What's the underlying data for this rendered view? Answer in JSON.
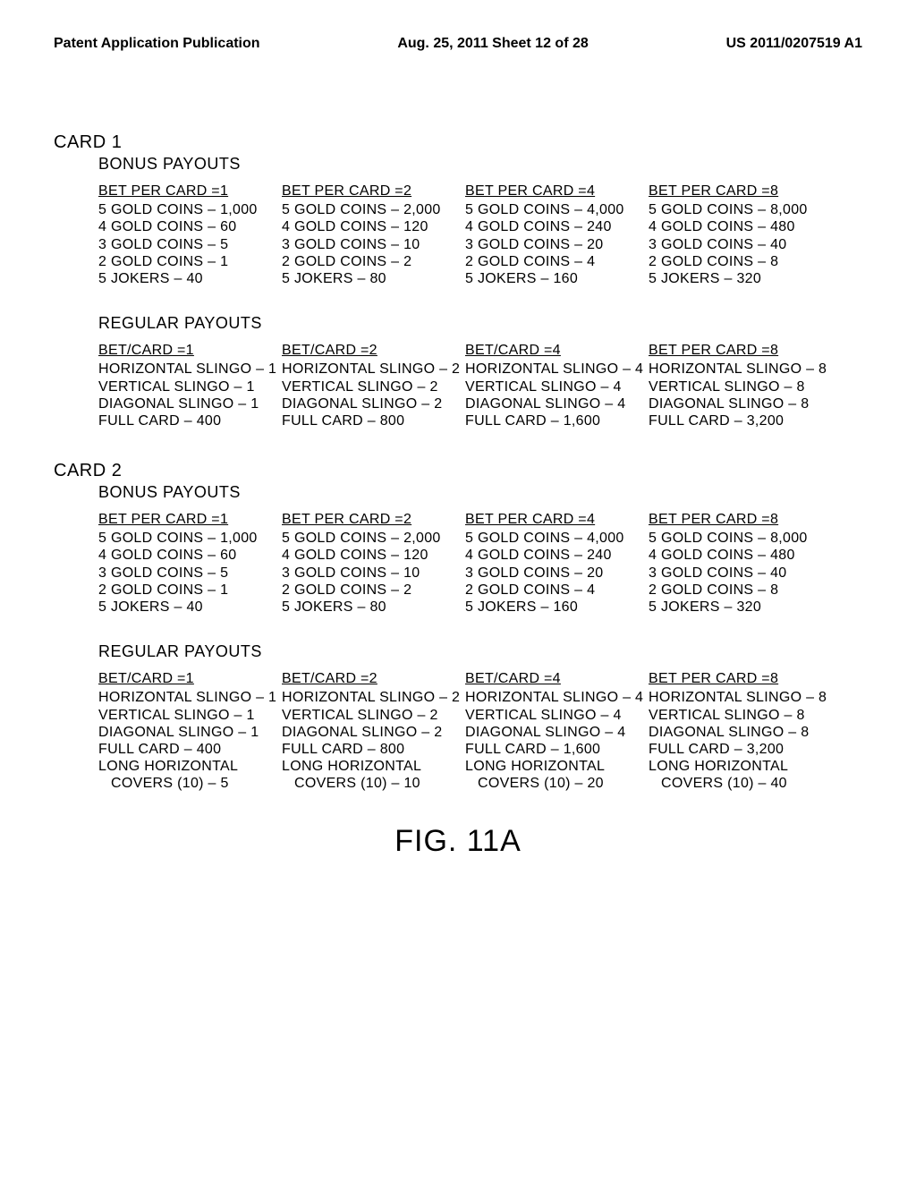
{
  "header": {
    "left": "Patent Application Publication",
    "center": "Aug. 25, 2011  Sheet 12 of 28",
    "right": "US 2011/0207519 A1"
  },
  "cards": [
    {
      "label": "CARD 1",
      "sections": [
        {
          "title": "BONUS PAYOUTS",
          "columns": [
            {
              "header": "BET PER CARD =1",
              "rows": [
                "5 GOLD COINS – 1,000",
                "4 GOLD COINS – 60",
                "3 GOLD COINS – 5",
                "2 GOLD COINS – 1",
                "5 JOKERS – 40"
              ]
            },
            {
              "header": "BET PER CARD =2",
              "rows": [
                "5 GOLD COINS – 2,000",
                "4 GOLD COINS – 120",
                "3 GOLD COINS – 10",
                "2 GOLD COINS – 2",
                "5 JOKERS – 80"
              ]
            },
            {
              "header": "BET PER CARD =4",
              "rows": [
                "5 GOLD COINS – 4,000",
                "4 GOLD COINS – 240",
                "3 GOLD COINS – 20",
                "2 GOLD COINS – 4",
                "5 JOKERS – 160"
              ]
            },
            {
              "header": "BET PER CARD =8",
              "rows": [
                "5 GOLD COINS – 8,000",
                "4 GOLD COINS – 480",
                "3 GOLD COINS – 40",
                "2 GOLD COINS – 8",
                "5 JOKERS – 320"
              ]
            }
          ]
        },
        {
          "title": "REGULAR PAYOUTS",
          "columns": [
            {
              "header": "BET/CARD =1",
              "rows": [
                "HORIZONTAL SLINGO – 1",
                "VERTICAL SLINGO – 1",
                "DIAGONAL SLINGO – 1",
                "FULL CARD – 400"
              ]
            },
            {
              "header": "BET/CARD =2",
              "rows": [
                "HORIZONTAL SLINGO – 2",
                "VERTICAL SLINGO – 2",
                "DIAGONAL SLINGO – 2",
                "FULL CARD – 800"
              ]
            },
            {
              "header": "BET/CARD =4",
              "rows": [
                "HORIZONTAL SLINGO – 4",
                "VERTICAL SLINGO – 4",
                "DIAGONAL SLINGO – 4",
                "FULL CARD – 1,600"
              ]
            },
            {
              "header": "BET PER CARD =8",
              "rows": [
                "HORIZONTAL SLINGO – 8",
                "VERTICAL SLINGO – 8",
                "DIAGONAL SLINGO – 8",
                "FULL CARD – 3,200"
              ]
            }
          ]
        }
      ]
    },
    {
      "label": "CARD 2",
      "sections": [
        {
          "title": "BONUS PAYOUTS",
          "columns": [
            {
              "header": "BET PER CARD =1",
              "rows": [
                "5 GOLD COINS – 1,000",
                "4 GOLD COINS – 60",
                "3 GOLD COINS – 5",
                "2 GOLD COINS – 1",
                "5 JOKERS – 40"
              ]
            },
            {
              "header": "BET PER CARD =2",
              "rows": [
                "5 GOLD COINS – 2,000",
                "4 GOLD COINS – 120",
                "3 GOLD COINS – 10",
                "2 GOLD COINS – 2",
                "5 JOKERS – 80"
              ]
            },
            {
              "header": "BET PER CARD =4",
              "rows": [
                "5 GOLD COINS – 4,000",
                "4 GOLD COINS – 240",
                "3 GOLD COINS – 20",
                "2 GOLD COINS – 4",
                "5 JOKERS – 160"
              ]
            },
            {
              "header": "BET PER CARD =8",
              "rows": [
                "5 GOLD COINS – 8,000",
                "4 GOLD COINS – 480",
                "3 GOLD COINS – 40",
                "2 GOLD COINS – 8",
                "5 JOKERS – 320"
              ]
            }
          ]
        },
        {
          "title": "REGULAR PAYOUTS",
          "columns": [
            {
              "header": "BET/CARD =1",
              "rows": [
                "HORIZONTAL SLINGO – 1",
                "VERTICAL SLINGO – 1",
                "DIAGONAL SLINGO – 1",
                "FULL CARD – 400",
                "LONG HORIZONTAL",
                "  COVERS (10) – 5"
              ]
            },
            {
              "header": "BET/CARD =2",
              "rows": [
                "HORIZONTAL SLINGO – 2",
                "VERTICAL SLINGO – 2",
                "DIAGONAL SLINGO – 2",
                "FULL CARD – 800",
                "LONG HORIZONTAL",
                "  COVERS (10) – 10"
              ]
            },
            {
              "header": "BET/CARD =4",
              "rows": [
                "HORIZONTAL SLINGO – 4",
                "VERTICAL SLINGO – 4",
                "DIAGONAL SLINGO – 4",
                "FULL CARD – 1,600",
                "LONG HORIZONTAL",
                "  COVERS (10) – 20"
              ]
            },
            {
              "header": "BET PER CARD =8",
              "rows": [
                "HORIZONTAL SLINGO – 8",
                "VERTICAL SLINGO – 8",
                "DIAGONAL SLINGO – 8",
                "FULL CARD – 3,200",
                "LONG HORIZONTAL",
                "  COVERS (10) – 40"
              ]
            }
          ]
        }
      ]
    }
  ],
  "figure_label": "FIG. 11A"
}
